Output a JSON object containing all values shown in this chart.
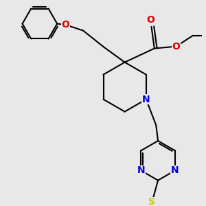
{
  "bg_color": "#e8e8e8",
  "bond_color": "#000000",
  "N_color": "#0000dd",
  "O_color": "#dd0000",
  "S_color": "#cccc00",
  "line_width": 1.5,
  "font_size": 10,
  "figsize": [
    3.0,
    3.0
  ],
  "dpi": 100,
  "xlim": [
    0,
    10
  ],
  "ylim": [
    0,
    10
  ]
}
